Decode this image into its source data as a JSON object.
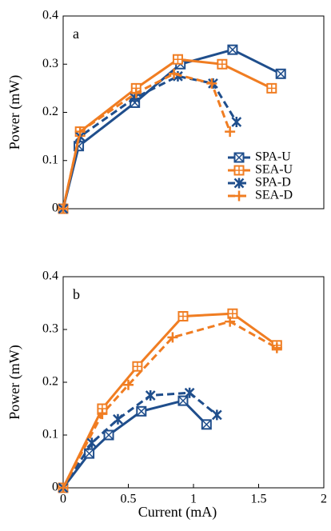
{
  "chart_data": [
    {
      "type": "line",
      "annotation": "a",
      "ylabel": "Power (mW)",
      "xlim": [
        0,
        2
      ],
      "ylim": [
        0,
        0.4
      ],
      "yticks": [
        0,
        0.1,
        0.2,
        0.3,
        0.4
      ],
      "legend": "lower right",
      "series": [
        {
          "name": "SPA-U",
          "color": "#1f4e8c",
          "dash": false,
          "marker": "square-x",
          "x": [
            0,
            0.12,
            0.55,
            0.9,
            1.3,
            1.67
          ],
          "values": [
            0,
            0.13,
            0.22,
            0.3,
            0.33,
            0.28
          ]
        },
        {
          "name": "SEA-U",
          "color": "#f07d22",
          "dash": false,
          "marker": "square-plus",
          "x": [
            0,
            0.13,
            0.56,
            0.88,
            1.22,
            1.6
          ],
          "values": [
            0,
            0.16,
            0.25,
            0.31,
            0.3,
            0.25
          ]
        },
        {
          "name": "SPA-D",
          "color": "#1f4e8c",
          "dash": true,
          "marker": "star",
          "x": [
            0,
            0.13,
            0.55,
            0.88,
            1.15,
            1.33
          ],
          "values": [
            0,
            0.15,
            0.23,
            0.275,
            0.26,
            0.18
          ]
        },
        {
          "name": "SEA-D",
          "color": "#f07d22",
          "dash": true,
          "marker": "plus",
          "x": [
            0,
            0.13,
            0.56,
            0.85,
            1.14,
            1.28
          ],
          "values": [
            0,
            0.16,
            0.24,
            0.28,
            0.26,
            0.16
          ]
        }
      ]
    },
    {
      "type": "line",
      "annotation": "b",
      "ylabel": "Power (mW)",
      "xlabel": "Current (mA)",
      "xlim": [
        0,
        2
      ],
      "ylim": [
        0,
        0.4
      ],
      "xticks": [
        0,
        0.5,
        1,
        1.5,
        2
      ],
      "yticks": [
        0,
        0.1,
        0.2,
        0.3,
        0.4
      ],
      "series": [
        {
          "color": "#1f4e8c",
          "dash": false,
          "marker": "square-x",
          "x": [
            0,
            0.2,
            0.35,
            0.6,
            0.92,
            1.1
          ],
          "values": [
            0,
            0.065,
            0.1,
            0.145,
            0.165,
            0.12
          ]
        },
        {
          "color": "#f07d22",
          "dash": false,
          "marker": "square-plus",
          "x": [
            0,
            0.3,
            0.57,
            0.92,
            1.3,
            1.64
          ],
          "values": [
            0,
            0.15,
            0.23,
            0.325,
            0.33,
            0.27
          ]
        },
        {
          "color": "#1f4e8c",
          "dash": true,
          "marker": "star",
          "x": [
            0,
            0.22,
            0.42,
            0.67,
            0.97,
            1.18
          ],
          "values": [
            0,
            0.085,
            0.13,
            0.175,
            0.18,
            0.138
          ]
        },
        {
          "color": "#f07d22",
          "dash": true,
          "marker": "plus",
          "x": [
            0,
            0.3,
            0.5,
            0.84,
            1.28,
            1.64
          ],
          "values": [
            0,
            0.14,
            0.195,
            0.285,
            0.315,
            0.265
          ]
        }
      ]
    }
  ]
}
